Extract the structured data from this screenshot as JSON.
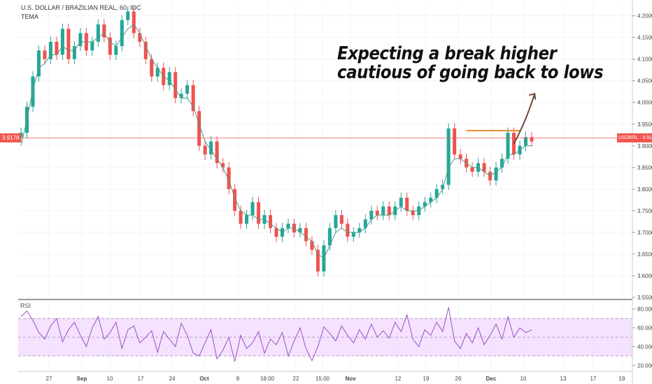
{
  "chart_data": {
    "type": "line",
    "title": "U.S. DOLLAR / BRAZILIAN REAL, 60, IDC",
    "indicator": "TEMA",
    "symbol": "USDBRL",
    "last_price": "3.9178",
    "annotation_line1": "Expecting a break higher",
    "annotation_line2": "cautious of going back to lows",
    "price_axis": {
      "ylim": [
        3.55,
        4.23
      ],
      "ticks": [
        "4.2000",
        "4.1500",
        "4.1000",
        "4.0500",
        "4.0000",
        "3.9500",
        "3.9000",
        "3.8500",
        "3.8000",
        "3.7500",
        "3.7000",
        "3.6500",
        "3.6000",
        "3.5500"
      ],
      "tick_values": [
        4.2,
        4.15,
        4.1,
        4.05,
        4.0,
        3.95,
        3.9,
        3.85,
        3.8,
        3.75,
        3.7,
        3.65,
        3.6,
        3.55
      ]
    },
    "rsi_panel": {
      "name": "RSI",
      "ylim": [
        15,
        88
      ],
      "ticks": [
        "80.0000",
        "60.0000",
        "40.0000",
        "20.0000"
      ],
      "tick_values": [
        80,
        60,
        40,
        20
      ],
      "band": [
        30,
        70
      ]
    },
    "x_axis": {
      "labels": [
        "27",
        "Sep",
        "10",
        "17",
        "24",
        "Oct",
        "8",
        "18:00",
        "22",
        "15:00",
        "Nov",
        "12",
        "19",
        "26",
        "Dec",
        "10",
        "13",
        "17",
        "19"
      ],
      "bold": [
        "Sep",
        "Oct",
        "Nov",
        "Dec"
      ]
    },
    "series": [
      {
        "name": "USDBRL",
        "color": "#26a69a",
        "down_color": "#ef5350",
        "values": [
          3.93,
          3.99,
          4.06,
          4.12,
          4.1,
          4.14,
          4.11,
          4.17,
          4.1,
          4.13,
          4.16,
          4.12,
          4.14,
          4.18,
          4.15,
          4.11,
          4.13,
          4.19,
          4.21,
          4.16,
          4.14,
          4.1,
          4.06,
          4.08,
          4.04,
          4.07,
          4.01,
          4.02,
          4.04,
          3.98,
          3.9,
          3.88,
          3.91,
          3.86,
          3.85,
          3.8,
          3.75,
          3.72,
          3.74,
          3.77,
          3.72,
          3.74,
          3.71,
          3.69,
          3.71,
          3.72,
          3.7,
          3.71,
          3.68,
          3.66,
          3.61,
          3.67,
          3.71,
          3.74,
          3.72,
          3.69,
          3.7,
          3.71,
          3.73,
          3.75,
          3.74,
          3.76,
          3.74,
          3.76,
          3.78,
          3.75,
          3.74,
          3.76,
          3.77,
          3.78,
          3.8,
          3.81,
          3.94,
          3.88,
          3.87,
          3.85,
          3.84,
          3.86,
          3.84,
          3.82,
          3.85,
          3.87,
          3.93,
          3.88,
          3.9,
          3.92,
          3.91
        ]
      },
      {
        "name": "TEMA",
        "color": "#4c9a7f",
        "values": [
          3.9,
          3.96,
          4.03,
          4.08,
          4.09,
          4.11,
          4.11,
          4.13,
          4.12,
          4.12,
          4.14,
          4.14,
          4.14,
          4.15,
          4.16,
          4.14,
          4.13,
          4.15,
          4.17,
          4.18,
          4.16,
          4.13,
          4.1,
          4.08,
          4.06,
          4.05,
          4.03,
          4.01,
          4.01,
          3.99,
          3.95,
          3.91,
          3.89,
          3.87,
          3.85,
          3.82,
          3.78,
          3.75,
          3.74,
          3.74,
          3.73,
          3.73,
          3.72,
          3.71,
          3.7,
          3.71,
          3.71,
          3.7,
          3.69,
          3.68,
          3.65,
          3.64,
          3.67,
          3.7,
          3.71,
          3.7,
          3.7,
          3.7,
          3.71,
          3.73,
          3.74,
          3.74,
          3.74,
          3.75,
          3.76,
          3.75,
          3.75,
          3.75,
          3.76,
          3.77,
          3.78,
          3.8,
          3.85,
          3.87,
          3.87,
          3.86,
          3.85,
          3.85,
          3.84,
          3.83,
          3.84,
          3.85,
          3.88,
          3.88,
          3.89,
          3.9,
          3.9
        ]
      },
      {
        "name": "RSI",
        "color": "#9c4fc4",
        "values": [
          72,
          78,
          68,
          55,
          48,
          62,
          70,
          45,
          58,
          66,
          52,
          40,
          60,
          72,
          48,
          55,
          66,
          38,
          58,
          62,
          44,
          50,
          57,
          34,
          56,
          48,
          40,
          65,
          52,
          33,
          30,
          44,
          58,
          27,
          36,
          50,
          24,
          52,
          38,
          44,
          56,
          33,
          48,
          42,
          55,
          30,
          46,
          60,
          38,
          25,
          40,
          61,
          54,
          46,
          62,
          52,
          44,
          58,
          48,
          64,
          50,
          57,
          49,
          66,
          56,
          74,
          48,
          40,
          58,
          52,
          66,
          56,
          82,
          46,
          38,
          54,
          44,
          60,
          42,
          52,
          64,
          48,
          72,
          50,
          60,
          55,
          58
        ]
      }
    ],
    "resistance_level": 3.935,
    "resistance_span": [
      75,
      84
    ],
    "projection": [
      [
        83,
        3.905
      ],
      [
        85,
        3.955
      ],
      [
        86.5,
        4.02
      ]
    ]
  }
}
